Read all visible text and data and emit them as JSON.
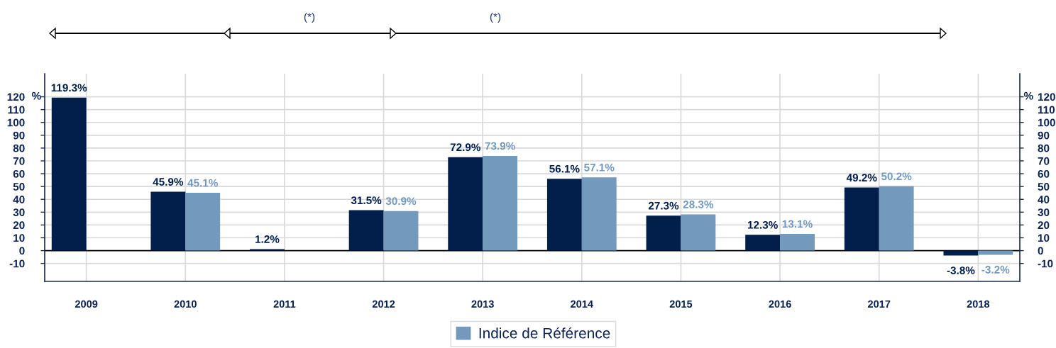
{
  "chart_data": {
    "type": "bar",
    "categories": [
      "2009",
      "2010",
      "2011",
      "2012",
      "2013",
      "2014",
      "2015",
      "2016",
      "2017",
      "2018"
    ],
    "series": [
      {
        "color": "#021f4b",
        "values": [
          119.3,
          45.9,
          1.2,
          31.5,
          72.9,
          56.1,
          27.3,
          12.3,
          49.2,
          -3.8
        ],
        "value_labels": [
          "119.3%",
          "45.9%",
          "1.2%",
          "31.5%",
          "72.9%",
          "56.1%",
          "27.3%",
          "12.3%",
          "49.2%",
          "-3.8%"
        ]
      },
      {
        "name": "Indice de Référence",
        "color": "#7399bd",
        "values": [
          null,
          45.1,
          null,
          30.9,
          73.9,
          57.1,
          28.3,
          13.1,
          50.2,
          -3.2
        ],
        "value_labels": [
          null,
          "45.1%",
          null,
          "30.9%",
          "73.9%",
          "57.1%",
          "28.3%",
          "13.1%",
          "50.2%",
          "-3.2%"
        ]
      }
    ],
    "ylabel": "%",
    "y2label": "%",
    "ylim": [
      -24,
      138
    ],
    "yticks": [
      -10,
      0,
      10,
      20,
      30,
      40,
      50,
      60,
      70,
      80,
      90,
      100,
      110,
      120
    ],
    "y2lim": [
      -24,
      138
    ],
    "y2ticks": [
      -10,
      0,
      10,
      20,
      30,
      40,
      50,
      60,
      70,
      80,
      90,
      100,
      110,
      120
    ],
    "ref_lines": [
      {
        "axis": "y",
        "value": 0,
        "color": "#000000"
      }
    ],
    "grid": true,
    "legend": "bottom",
    "annotations": [
      "(*)",
      "(*)"
    ]
  }
}
